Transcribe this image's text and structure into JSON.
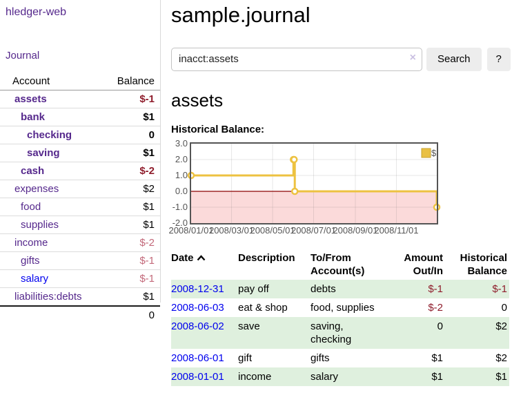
{
  "sidebar": {
    "app_title": "hledger-web",
    "nav": [
      {
        "label": "Journal"
      }
    ],
    "accounts_table": {
      "headers": [
        "Account",
        "Balance"
      ],
      "rows": [
        {
          "account": "assets",
          "indent": 1,
          "bold": true,
          "balance": "$-1",
          "balance_style": "neg-strong"
        },
        {
          "account": "bank",
          "indent": 2,
          "bold": true,
          "balance": "$1",
          "balance_style": "pos"
        },
        {
          "account": "checking",
          "indent": 3,
          "bold": true,
          "balance": "0",
          "balance_style": "pos"
        },
        {
          "account": "saving",
          "indent": 3,
          "bold": true,
          "balance": "$1",
          "balance_style": "pos"
        },
        {
          "account": "cash",
          "indent": 2,
          "bold": true,
          "balance": "$-2",
          "balance_style": "neg-strong"
        },
        {
          "account": "expenses",
          "indent": 1,
          "bold": false,
          "balance": "$2",
          "balance_style": "pos"
        },
        {
          "account": "food",
          "indent": 2,
          "bold": false,
          "balance": "$1",
          "balance_style": "pos"
        },
        {
          "account": "supplies",
          "indent": 2,
          "bold": false,
          "balance": "$1",
          "balance_style": "pos"
        },
        {
          "account": "income",
          "indent": 1,
          "bold": false,
          "balance": "$-2",
          "balance_style": "neg-soft"
        },
        {
          "account": "gifts",
          "indent": 2,
          "bold": false,
          "balance": "$-1",
          "balance_style": "neg-soft"
        },
        {
          "account": "salary",
          "indent": 2,
          "bold": false,
          "link_state": "unvisited",
          "balance": "$-1",
          "balance_style": "neg-soft"
        },
        {
          "account": "liabilities:debts",
          "indent": 1,
          "bold": false,
          "balance": "$1",
          "balance_style": "pos"
        }
      ],
      "total": "0"
    }
  },
  "header": {
    "title": "sample.journal"
  },
  "search": {
    "query": "inacct:assets",
    "clear_icon": "×",
    "search_label": "Search",
    "help_label": "?"
  },
  "account_page": {
    "heading": "assets",
    "chart_label": "Historical Balance:"
  },
  "chart_data": {
    "type": "line",
    "step": true,
    "title": "Historical Balance",
    "series": [
      {
        "name": "$",
        "color": "#edc240",
        "x": [
          "2008-01-01",
          "2008-06-01",
          "2008-06-02",
          "2008-06-03",
          "2008-12-31"
        ],
        "y": [
          1,
          2,
          2,
          0,
          -1
        ]
      }
    ],
    "xlim": [
      "2008-01-01",
      "2008-12-31"
    ],
    "ylim": [
      -2,
      3
    ],
    "yticks": [
      3,
      2,
      1,
      0,
      -1,
      -2
    ],
    "xtick_labels": [
      "2008/01/01",
      "2008/03/01",
      "2008/05/01",
      "2008/07/01",
      "2008/09/01",
      "2008/11/01"
    ],
    "grid": true,
    "legend_position": "top-right",
    "legend": [
      "$"
    ],
    "negative_region_color": "#fbdada",
    "zero_line_color": "#8b0000",
    "axis_text_color": "#545454",
    "border_color": "#545454"
  },
  "register_table": {
    "headers": [
      "Date",
      "Description",
      "To/From Account(s)",
      "Amount Out/In",
      "Historical Balance"
    ],
    "sort_icon": "chevron-up",
    "rows": [
      {
        "date": "2008-12-31",
        "description": "pay off",
        "accounts": "debts",
        "amount": "$-1",
        "amount_neg": true,
        "balance": "$-1",
        "balance_neg": true
      },
      {
        "date": "2008-06-03",
        "description": "eat & shop",
        "accounts": "food, supplies",
        "amount": "$-2",
        "amount_neg": true,
        "balance": "0",
        "balance_neg": false
      },
      {
        "date": "2008-06-02",
        "description": "save",
        "accounts": "saving, checking",
        "amount": "0",
        "amount_neg": false,
        "balance": "$2",
        "balance_neg": false
      },
      {
        "date": "2008-06-01",
        "description": "gift",
        "accounts": "gifts",
        "amount": "$1",
        "amount_neg": false,
        "balance": "$2",
        "balance_neg": false
      },
      {
        "date": "2008-01-01",
        "description": "income",
        "accounts": "salary",
        "amount": "$1",
        "amount_neg": false,
        "balance": "$1",
        "balance_neg": false
      }
    ]
  },
  "colors": {
    "link_purple": "#55288c",
    "link_blue": "#0000ee",
    "negative_strong": "#8f1d2c",
    "negative_soft": "#c3697a",
    "row_green": "#dff0de",
    "series_gold": "#edc240"
  }
}
